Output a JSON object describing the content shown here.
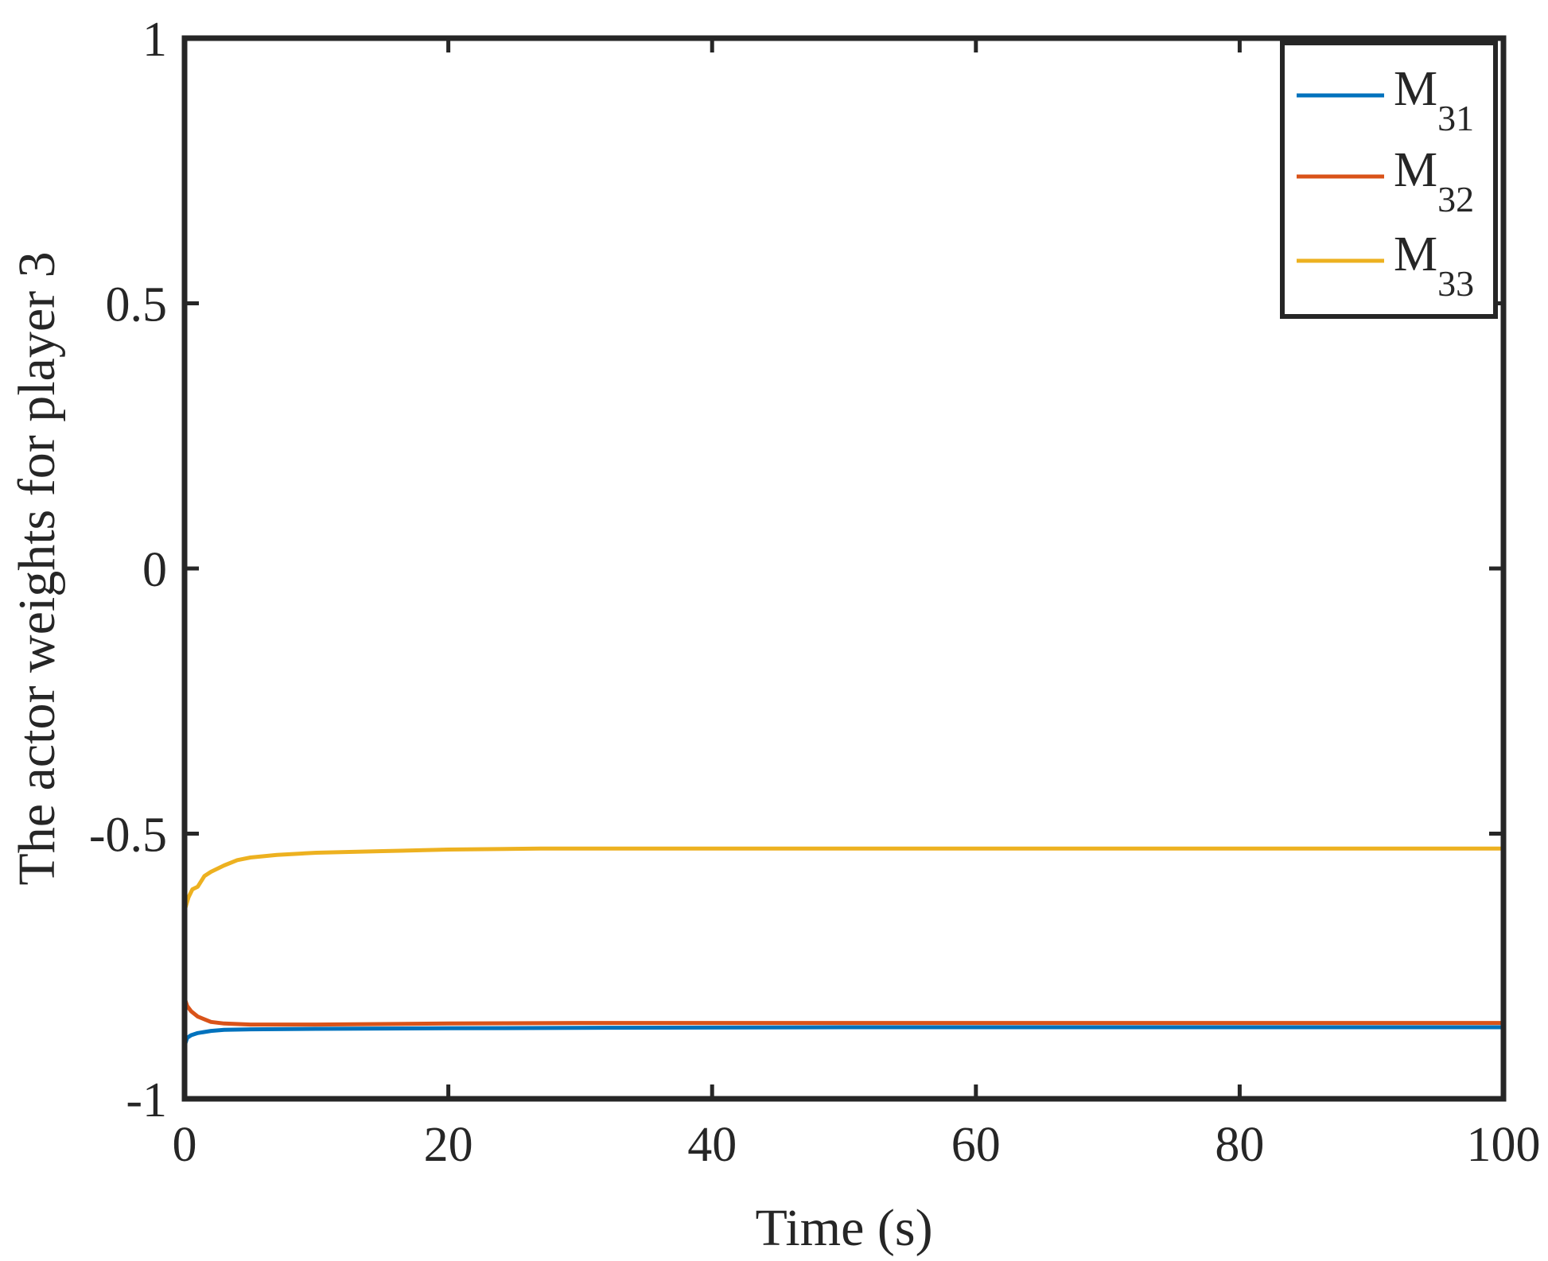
{
  "chart_data": {
    "type": "line",
    "title": "",
    "xlabel": "Time (s)",
    "ylabel": "The actor weights for player 3",
    "xlim": [
      0,
      100
    ],
    "ylim": [
      -1,
      1
    ],
    "xticks": [
      0,
      20,
      40,
      60,
      80,
      100
    ],
    "xtick_labels": [
      "0",
      "20",
      "40",
      "60",
      "80",
      "100"
    ],
    "yticks": [
      -1,
      -0.5,
      0,
      0.5,
      1
    ],
    "ytick_labels": [
      "-1",
      "-0.5",
      "0",
      "0.5",
      "1"
    ],
    "grid": false,
    "legend_position": "top-right",
    "series": [
      {
        "name": "M",
        "subscript": "31",
        "color": "#0072BD",
        "points": [
          [
            0,
            -0.9
          ],
          [
            0.2,
            -0.885
          ],
          [
            0.5,
            -0.88
          ],
          [
            1,
            -0.876
          ],
          [
            2,
            -0.872
          ],
          [
            3,
            -0.87
          ],
          [
            5,
            -0.869
          ],
          [
            10,
            -0.868
          ],
          [
            20,
            -0.867
          ],
          [
            33,
            -0.866
          ],
          [
            50,
            -0.865
          ],
          [
            100,
            -0.865
          ]
        ]
      },
      {
        "name": "M",
        "subscript": "32",
        "color": "#D95319",
        "points": [
          [
            0,
            -0.81
          ],
          [
            0.2,
            -0.825
          ],
          [
            0.5,
            -0.835
          ],
          [
            1,
            -0.845
          ],
          [
            2,
            -0.855
          ],
          [
            3,
            -0.858
          ],
          [
            5,
            -0.86
          ],
          [
            10,
            -0.86
          ],
          [
            20,
            -0.858
          ],
          [
            30,
            -0.857
          ],
          [
            50,
            -0.857
          ],
          [
            100,
            -0.857
          ]
        ]
      },
      {
        "name": "M",
        "subscript": "33",
        "color": "#EDB120",
        "points": [
          [
            0,
            -0.645
          ],
          [
            0.3,
            -0.62
          ],
          [
            0.6,
            -0.605
          ],
          [
            1,
            -0.6
          ],
          [
            1.5,
            -0.58
          ],
          [
            2,
            -0.572
          ],
          [
            3,
            -0.56
          ],
          [
            4,
            -0.55
          ],
          [
            5,
            -0.545
          ],
          [
            7,
            -0.54
          ],
          [
            10,
            -0.536
          ],
          [
            15,
            -0.533
          ],
          [
            20,
            -0.53
          ],
          [
            27,
            -0.528
          ],
          [
            40,
            -0.528
          ],
          [
            60,
            -0.528
          ],
          [
            100,
            -0.528
          ]
        ]
      }
    ]
  }
}
